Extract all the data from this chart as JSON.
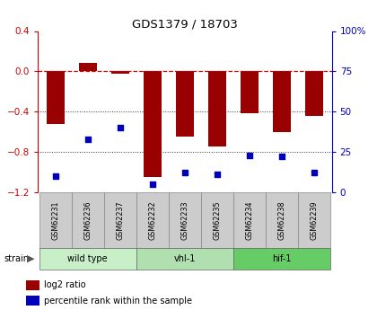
{
  "title": "GDS1379 / 18703",
  "samples": [
    "GSM62231",
    "GSM62236",
    "GSM62237",
    "GSM62232",
    "GSM62233",
    "GSM62235",
    "GSM62234",
    "GSM62238",
    "GSM62239"
  ],
  "log2_ratio": [
    -0.52,
    0.08,
    -0.02,
    -1.05,
    -0.65,
    -0.75,
    -0.42,
    -0.6,
    -0.44
  ],
  "percentile_rank": [
    10,
    33,
    40,
    5,
    12,
    11,
    23,
    22,
    12
  ],
  "groups": [
    {
      "label": "wild type",
      "start": 0,
      "end": 3,
      "color": "#c8efc8"
    },
    {
      "label": "vhl-1",
      "start": 3,
      "end": 6,
      "color": "#b0e0b0"
    },
    {
      "label": "hif-1",
      "start": 6,
      "end": 9,
      "color": "#66cc66"
    }
  ],
  "ylim_left": [
    -1.2,
    0.4
  ],
  "ylim_right": [
    0,
    100
  ],
  "bar_color": "#990000",
  "dot_color": "#0000bb",
  "hline_color": "#cc0000",
  "dotline_color": "#333333",
  "bg_color": "#ffffff",
  "tick_color_left": "#cc0000",
  "tick_color_right": "#0000bb",
  "yticks_left": [
    0.4,
    0.0,
    -0.4,
    -0.8,
    -1.2
  ],
  "yticks_right": [
    100,
    75,
    50,
    25,
    0
  ],
  "sample_box_color": "#cccccc",
  "legend_items": [
    {
      "label": "log2 ratio",
      "color": "#990000"
    },
    {
      "label": "percentile rank within the sample",
      "color": "#0000bb"
    }
  ]
}
